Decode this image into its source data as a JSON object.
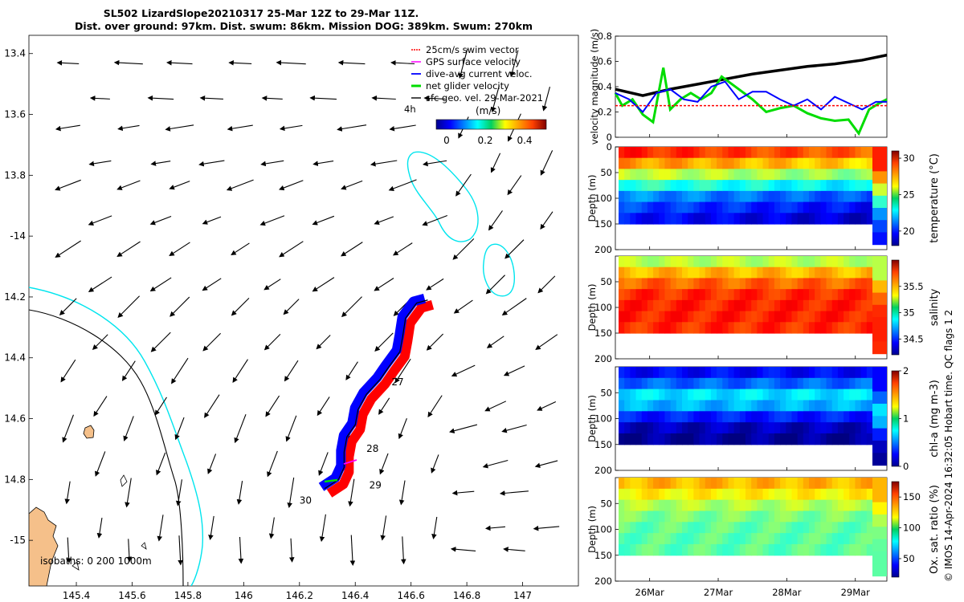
{
  "title": {
    "line1": "SL502 LizardSlope20210317 25-Mar 12Z to 29-Mar 11Z.",
    "line2": "Dist. over ground: 97km. Dist. swum: 86km. Mission DOG: 389km. Swum: 270km"
  },
  "credit": "© IMOS 14-Apr-2024 16:32:05 Hobart time. QC flags 1  2",
  "colors": {
    "swim": "#ff0000",
    "gps": "#ff00ff",
    "diveavg": "#0000ff",
    "net": "#00dd00",
    "sfc": "#000000",
    "coast_shelf": "#00e5ee",
    "track_red": "#ff0000",
    "track_blue": "#0000ff",
    "land": "#f5c08a"
  },
  "chart_data": [
    {
      "type": "map",
      "name": "track-map",
      "xlim": [
        145.23,
        147.2
      ],
      "ylim": [
        -15.15,
        -13.34
      ],
      "xticks": [
        145.4,
        145.6,
        145.8,
        146,
        146.2,
        146.4,
        146.6,
        146.8,
        147
      ],
      "xtick_labels": [
        "145.4",
        "145.6",
        "145.8",
        "146",
        "146.2",
        "146.4",
        "146.6",
        "146.8",
        "147"
      ],
      "yticks": [
        -13.4,
        -13.6,
        -13.8,
        -14,
        -14.2,
        -14.4,
        -14.6,
        -14.8,
        -15
      ],
      "ytick_labels": [
        "13.4",
        "13.6",
        "13.8",
        "-14",
        "14.2",
        "14.4",
        "14.6",
        "14.8",
        "-15"
      ],
      "legend": {
        "position": "top-right",
        "items": [
          {
            "label": "25cm/s swim vector",
            "key": "swim"
          },
          {
            "label": "GPS surface velocity",
            "key": "gps"
          },
          {
            "label": "dive-avg current veloc.",
            "key": "diveavg"
          },
          {
            "label": "net glider velocity",
            "key": "net"
          },
          {
            "label": "sfc geo. vel. 29-Mar-2021",
            "key": "sfc"
          }
        ]
      },
      "colorbar": {
        "label": "(m/s)",
        "ticks": [
          0,
          0.2,
          0.4
        ],
        "tick_labels": [
          "0",
          "0.2",
          "0.4"
        ],
        "range": [
          0,
          0.5
        ],
        "extra_label": "4h"
      },
      "isobath_note": "isobaths: 0   200  1000m",
      "day_labels": [
        {
          "text": "27",
          "lon": 146.53,
          "lat": -14.49
        },
        {
          "text": "28",
          "lon": 146.44,
          "lat": -14.71
        },
        {
          "text": "29",
          "lon": 146.45,
          "lat": -14.83
        },
        {
          "text": "30",
          "lon": 146.2,
          "lat": -14.88
        }
      ],
      "track": [
        [
          146.66,
          -14.21
        ],
        [
          146.62,
          -14.22
        ],
        [
          146.58,
          -14.27
        ],
        [
          146.57,
          -14.33
        ],
        [
          146.56,
          -14.38
        ],
        [
          146.52,
          -14.43
        ],
        [
          146.49,
          -14.47
        ],
        [
          146.44,
          -14.52
        ],
        [
          146.41,
          -14.57
        ],
        [
          146.4,
          -14.62
        ],
        [
          146.37,
          -14.66
        ],
        [
          146.36,
          -14.71
        ],
        [
          146.36,
          -14.76
        ],
        [
          146.34,
          -14.8
        ],
        [
          146.29,
          -14.83
        ]
      ],
      "current_field": {
        "lons": [
          145.4,
          145.6,
          145.8,
          146.0,
          146.2,
          146.4,
          146.6,
          146.8,
          147.0
        ],
        "lats": [
          -13.4,
          -13.6,
          -13.8,
          -14.0,
          -14.2,
          -14.4,
          -14.6,
          -14.8,
          -15.0
        ]
      }
    },
    {
      "type": "line",
      "name": "velocity-magnitude",
      "ylabel": "velocity magnitude (m/s)",
      "ylim": [
        0,
        0.8
      ],
      "yticks": [
        0,
        0.2,
        0.4,
        0.6,
        0.8
      ],
      "ytick_labels": [
        "0",
        "0.2",
        "0.4",
        "0.6",
        "0.8"
      ],
      "x_days": [
        25.5,
        29.46
      ],
      "series": [
        {
          "name": "cumulative",
          "key": "sfc",
          "x": [
            25.5,
            25.9,
            26.3,
            26.7,
            27.1,
            27.5,
            27.9,
            28.3,
            28.7,
            29.1,
            29.46
          ],
          "values": [
            0.38,
            0.33,
            0.38,
            0.42,
            0.46,
            0.5,
            0.53,
            0.56,
            0.58,
            0.61,
            0.65
          ]
        },
        {
          "name": "net",
          "key": "net",
          "x": [
            25.5,
            25.6,
            25.75,
            25.9,
            26.05,
            26.2,
            26.3,
            26.45,
            26.6,
            26.75,
            26.9,
            27.05,
            27.2,
            27.35,
            27.5,
            27.7,
            27.9,
            28.1,
            28.3,
            28.5,
            28.7,
            28.9,
            29.05,
            29.2,
            29.35,
            29.46
          ],
          "values": [
            0.35,
            0.25,
            0.3,
            0.18,
            0.12,
            0.55,
            0.22,
            0.3,
            0.35,
            0.3,
            0.35,
            0.48,
            0.42,
            0.36,
            0.3,
            0.2,
            0.23,
            0.25,
            0.19,
            0.15,
            0.13,
            0.14,
            0.03,
            0.22,
            0.27,
            0.3
          ]
        },
        {
          "name": "diveavg",
          "key": "diveavg",
          "x": [
            25.5,
            25.7,
            25.9,
            26.1,
            26.3,
            26.5,
            26.7,
            26.9,
            27.1,
            27.3,
            27.5,
            27.7,
            27.9,
            28.1,
            28.3,
            28.5,
            28.7,
            28.9,
            29.1,
            29.3,
            29.46
          ],
          "values": [
            0.35,
            0.3,
            0.2,
            0.35,
            0.38,
            0.3,
            0.28,
            0.4,
            0.44,
            0.3,
            0.36,
            0.36,
            0.3,
            0.25,
            0.3,
            0.22,
            0.32,
            0.27,
            0.22,
            0.28,
            0.28
          ]
        },
        {
          "name": "swim",
          "key": "swim",
          "x": [
            25.5,
            29.46
          ],
          "values": [
            0.25,
            0.25
          ]
        }
      ]
    },
    {
      "type": "heatmap",
      "name": "temperature-section",
      "ylabel": "Depth (m)",
      "colorbar_label": "temperature (°C)",
      "clim": [
        18,
        31
      ],
      "cticks": [
        20,
        25,
        30
      ],
      "ctick_labels": [
        "20",
        "25",
        "30"
      ],
      "ylim": [
        0,
        200
      ],
      "yticks": [
        0,
        50,
        100,
        150,
        200
      ],
      "ytick_labels": [
        "0",
        "50",
        "100",
        "150",
        "200"
      ],
      "profile_depth_max": 150,
      "profile": [
        29,
        27.5,
        25.5,
        23.5,
        21.5,
        20.5,
        19.8
      ]
    },
    {
      "type": "heatmap",
      "name": "salinity-section",
      "ylabel": "Depth (m)",
      "colorbar_label": "salinity",
      "clim": [
        34.2,
        36.0
      ],
      "cticks": [
        34.5,
        35,
        35.5
      ],
      "ctick_labels": [
        "34.5",
        "35",
        "35.5"
      ],
      "ylim": [
        0,
        200
      ],
      "yticks": [
        50,
        100,
        150,
        200
      ],
      "ytick_labels": [
        "50",
        "100",
        "150",
        "200"
      ],
      "profile_depth_max": 150,
      "profile": [
        35.2,
        35.45,
        35.6,
        35.7,
        35.72,
        35.72,
        35.7
      ]
    },
    {
      "type": "heatmap",
      "name": "chla-section",
      "ylabel": "Depth (m)",
      "colorbar_label": "chl-a (mg m-3)",
      "clim": [
        0,
        2
      ],
      "cticks": [
        0,
        1,
        2
      ],
      "ctick_labels": [
        "0",
        "1",
        "2"
      ],
      "ylim": [
        0,
        200
      ],
      "yticks": [
        50,
        100,
        150,
        200
      ],
      "ytick_labels": [
        "50",
        "100",
        "150",
        "200"
      ],
      "profile_depth_max": 150,
      "profile": [
        0.25,
        0.45,
        0.7,
        0.6,
        0.3,
        0.12,
        0.05
      ]
    },
    {
      "type": "heatmap",
      "name": "oxygen-section",
      "ylabel": "Depth (m)",
      "colorbar_label": "Ox. sat. ratio (%)",
      "clim": [
        20,
        175
      ],
      "cticks": [
        50,
        100,
        150
      ],
      "ctick_labels": [
        "50",
        "100",
        "150"
      ],
      "ylim": [
        0,
        200
      ],
      "yticks": [
        50,
        100,
        150,
        200
      ],
      "ytick_labels": [
        "50",
        "100",
        "150",
        "200"
      ],
      "profile_depth_max": 150,
      "profile": [
        128,
        118,
        105,
        97,
        93,
        92,
        92
      ]
    }
  ],
  "time_axis": {
    "range": [
      25.5,
      29.46
    ],
    "ticks": [
      26,
      27,
      28,
      29
    ],
    "tick_labels": [
      "26Mar",
      "27Mar",
      "28Mar",
      "29Mar"
    ]
  }
}
